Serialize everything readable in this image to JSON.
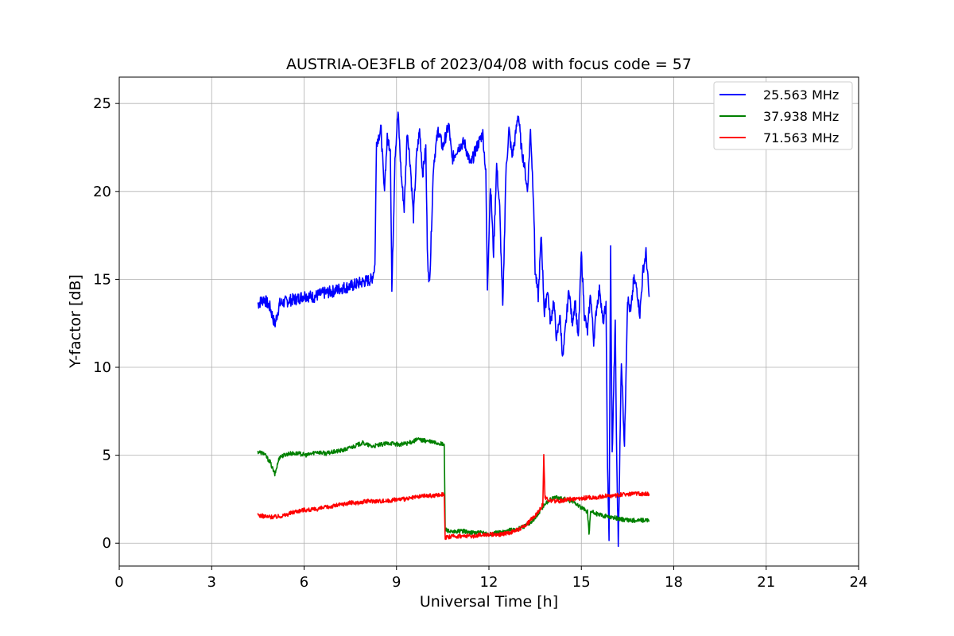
{
  "chart_data": {
    "type": "line",
    "title": "AUSTRIA-OE3FLB of 2023/04/08 with focus code = 57",
    "xlabel": "Universal Time [h]",
    "ylabel": "Y-factor [dB]",
    "xlim": [
      0,
      24
    ],
    "ylim": [
      -1.3,
      26.5
    ],
    "xticks": [
      0,
      3,
      6,
      9,
      12,
      15,
      18,
      21,
      24
    ],
    "yticks": [
      0,
      5,
      10,
      15,
      20,
      25
    ],
    "grid": true,
    "legend_position": "top-right",
    "series": [
      {
        "name": "25.563 MHz",
        "color": "#0000ff",
        "points": [
          [
            4.5,
            13.6
          ],
          [
            4.7,
            13.9
          ],
          [
            4.9,
            13.4
          ],
          [
            5.05,
            12.4
          ],
          [
            5.2,
            13.6
          ],
          [
            5.5,
            13.8
          ],
          [
            5.8,
            13.9
          ],
          [
            6.0,
            14.1
          ],
          [
            6.3,
            14.0
          ],
          [
            6.6,
            14.2
          ],
          [
            6.9,
            14.3
          ],
          [
            7.2,
            14.5
          ],
          [
            7.5,
            14.6
          ],
          [
            7.8,
            14.8
          ],
          [
            8.0,
            14.9
          ],
          [
            8.2,
            15.0
          ],
          [
            8.3,
            15.8
          ],
          [
            8.35,
            22.8
          ],
          [
            8.5,
            23.5
          ],
          [
            8.6,
            20.0
          ],
          [
            8.7,
            23.0
          ],
          [
            8.8,
            22.5
          ],
          [
            8.85,
            14.3
          ],
          [
            8.95,
            22.0
          ],
          [
            9.05,
            24.5
          ],
          [
            9.15,
            21.0
          ],
          [
            9.25,
            19.0
          ],
          [
            9.35,
            23.5
          ],
          [
            9.45,
            21.5
          ],
          [
            9.55,
            18.5
          ],
          [
            9.65,
            22.0
          ],
          [
            9.75,
            23.5
          ],
          [
            9.85,
            21.0
          ],
          [
            9.95,
            22.5
          ],
          [
            10.0,
            17.0
          ],
          [
            10.05,
            14.6
          ],
          [
            10.1,
            16.0
          ],
          [
            10.2,
            21.5
          ],
          [
            10.35,
            23.5
          ],
          [
            10.5,
            22.5
          ],
          [
            10.7,
            23.8
          ],
          [
            10.8,
            21.8
          ],
          [
            11.0,
            22.5
          ],
          [
            11.2,
            22.8
          ],
          [
            11.4,
            21.5
          ],
          [
            11.6,
            22.5
          ],
          [
            11.8,
            23.3
          ],
          [
            11.9,
            21.0
          ],
          [
            11.95,
            14.5
          ],
          [
            12.05,
            20.5
          ],
          [
            12.15,
            16.5
          ],
          [
            12.25,
            21.5
          ],
          [
            12.35,
            19.0
          ],
          [
            12.45,
            13.2
          ],
          [
            12.55,
            21.0
          ],
          [
            12.65,
            23.5
          ],
          [
            12.75,
            22.0
          ],
          [
            12.85,
            23.0
          ],
          [
            12.95,
            24.5
          ],
          [
            13.05,
            22.5
          ],
          [
            13.15,
            21.5
          ],
          [
            13.25,
            20.0
          ],
          [
            13.35,
            23.5
          ],
          [
            13.45,
            19.5
          ],
          [
            13.5,
            15.5
          ],
          [
            13.6,
            14.0
          ],
          [
            13.7,
            17.5
          ],
          [
            13.8,
            13.0
          ],
          [
            13.9,
            14.5
          ],
          [
            14.0,
            12.5
          ],
          [
            14.1,
            13.8
          ],
          [
            14.2,
            11.5
          ],
          [
            14.3,
            13.0
          ],
          [
            14.4,
            10.5
          ],
          [
            14.5,
            12.5
          ],
          [
            14.6,
            14.5
          ],
          [
            14.7,
            12.5
          ],
          [
            14.8,
            13.8
          ],
          [
            14.9,
            11.5
          ],
          [
            15.0,
            16.5
          ],
          [
            15.1,
            13.0
          ],
          [
            15.2,
            12.0
          ],
          [
            15.3,
            14.2
          ],
          [
            15.4,
            11.5
          ],
          [
            15.5,
            13.5
          ],
          [
            15.6,
            14.5
          ],
          [
            15.7,
            12.5
          ],
          [
            15.8,
            13.5
          ],
          [
            15.85,
            4.5
          ],
          [
            15.9,
            0.0
          ],
          [
            15.95,
            16.8
          ],
          [
            16.0,
            5.0
          ],
          [
            16.1,
            12.5
          ],
          [
            16.15,
            4.5
          ],
          [
            16.2,
            0.0
          ],
          [
            16.3,
            10.5
          ],
          [
            16.4,
            5.5
          ],
          [
            16.5,
            14.0
          ],
          [
            16.6,
            13.0
          ],
          [
            16.7,
            15.0
          ],
          [
            16.8,
            14.5
          ],
          [
            16.9,
            13.0
          ],
          [
            17.0,
            15.5
          ],
          [
            17.1,
            16.5
          ],
          [
            17.2,
            14.0
          ]
        ]
      },
      {
        "name": "37.938 MHz",
        "color": "#008000",
        "points": [
          [
            4.5,
            5.2
          ],
          [
            4.7,
            5.1
          ],
          [
            4.9,
            4.6
          ],
          [
            5.05,
            3.9
          ],
          [
            5.2,
            4.9
          ],
          [
            5.5,
            5.1
          ],
          [
            5.8,
            5.1
          ],
          [
            6.1,
            5.0
          ],
          [
            6.4,
            5.2
          ],
          [
            6.7,
            5.1
          ],
          [
            7.0,
            5.2
          ],
          [
            7.3,
            5.3
          ],
          [
            7.6,
            5.5
          ],
          [
            7.9,
            5.7
          ],
          [
            8.2,
            5.5
          ],
          [
            8.5,
            5.6
          ],
          [
            8.8,
            5.7
          ],
          [
            9.1,
            5.6
          ],
          [
            9.4,
            5.7
          ],
          [
            9.7,
            5.9
          ],
          [
            10.0,
            5.8
          ],
          [
            10.3,
            5.7
          ],
          [
            10.55,
            5.6
          ],
          [
            10.58,
            0.8
          ],
          [
            10.8,
            0.6
          ],
          [
            11.1,
            0.7
          ],
          [
            11.4,
            0.6
          ],
          [
            11.7,
            0.6
          ],
          [
            12.0,
            0.5
          ],
          [
            12.3,
            0.6
          ],
          [
            12.6,
            0.7
          ],
          [
            12.9,
            0.8
          ],
          [
            13.2,
            1.0
          ],
          [
            13.5,
            1.4
          ],
          [
            13.8,
            2.2
          ],
          [
            14.0,
            2.5
          ],
          [
            14.2,
            2.6
          ],
          [
            14.5,
            2.5
          ],
          [
            14.8,
            2.3
          ],
          [
            15.0,
            2.0
          ],
          [
            15.2,
            1.8
          ],
          [
            15.25,
            0.5
          ],
          [
            15.3,
            1.8
          ],
          [
            15.6,
            1.6
          ],
          [
            15.9,
            1.5
          ],
          [
            16.2,
            1.4
          ],
          [
            16.5,
            1.3
          ],
          [
            16.8,
            1.3
          ],
          [
            17.2,
            1.3
          ]
        ]
      },
      {
        "name": "71.563 MHz",
        "color": "#ff0000",
        "points": [
          [
            4.5,
            1.6
          ],
          [
            4.8,
            1.5
          ],
          [
            5.1,
            1.5
          ],
          [
            5.4,
            1.6
          ],
          [
            5.7,
            1.8
          ],
          [
            6.0,
            1.9
          ],
          [
            6.3,
            1.9
          ],
          [
            6.6,
            2.0
          ],
          [
            6.9,
            2.1
          ],
          [
            7.2,
            2.2
          ],
          [
            7.5,
            2.3
          ],
          [
            7.8,
            2.3
          ],
          [
            8.1,
            2.4
          ],
          [
            8.4,
            2.4
          ],
          [
            8.7,
            2.4
          ],
          [
            9.0,
            2.5
          ],
          [
            9.3,
            2.5
          ],
          [
            9.6,
            2.6
          ],
          [
            9.9,
            2.7
          ],
          [
            10.2,
            2.7
          ],
          [
            10.55,
            2.8
          ],
          [
            10.58,
            0.3
          ],
          [
            10.9,
            0.4
          ],
          [
            11.2,
            0.4
          ],
          [
            11.5,
            0.4
          ],
          [
            11.8,
            0.5
          ],
          [
            12.1,
            0.5
          ],
          [
            12.4,
            0.5
          ],
          [
            12.7,
            0.6
          ],
          [
            13.0,
            0.8
          ],
          [
            13.3,
            1.2
          ],
          [
            13.6,
            1.8
          ],
          [
            13.75,
            2.2
          ],
          [
            13.78,
            5.0
          ],
          [
            13.82,
            2.6
          ],
          [
            14.0,
            2.4
          ],
          [
            14.3,
            2.4
          ],
          [
            14.6,
            2.5
          ],
          [
            14.9,
            2.5
          ],
          [
            15.2,
            2.6
          ],
          [
            15.5,
            2.6
          ],
          [
            15.8,
            2.7
          ],
          [
            16.1,
            2.7
          ],
          [
            16.4,
            2.8
          ],
          [
            16.7,
            2.8
          ],
          [
            17.0,
            2.8
          ],
          [
            17.2,
            2.8
          ]
        ]
      }
    ]
  }
}
